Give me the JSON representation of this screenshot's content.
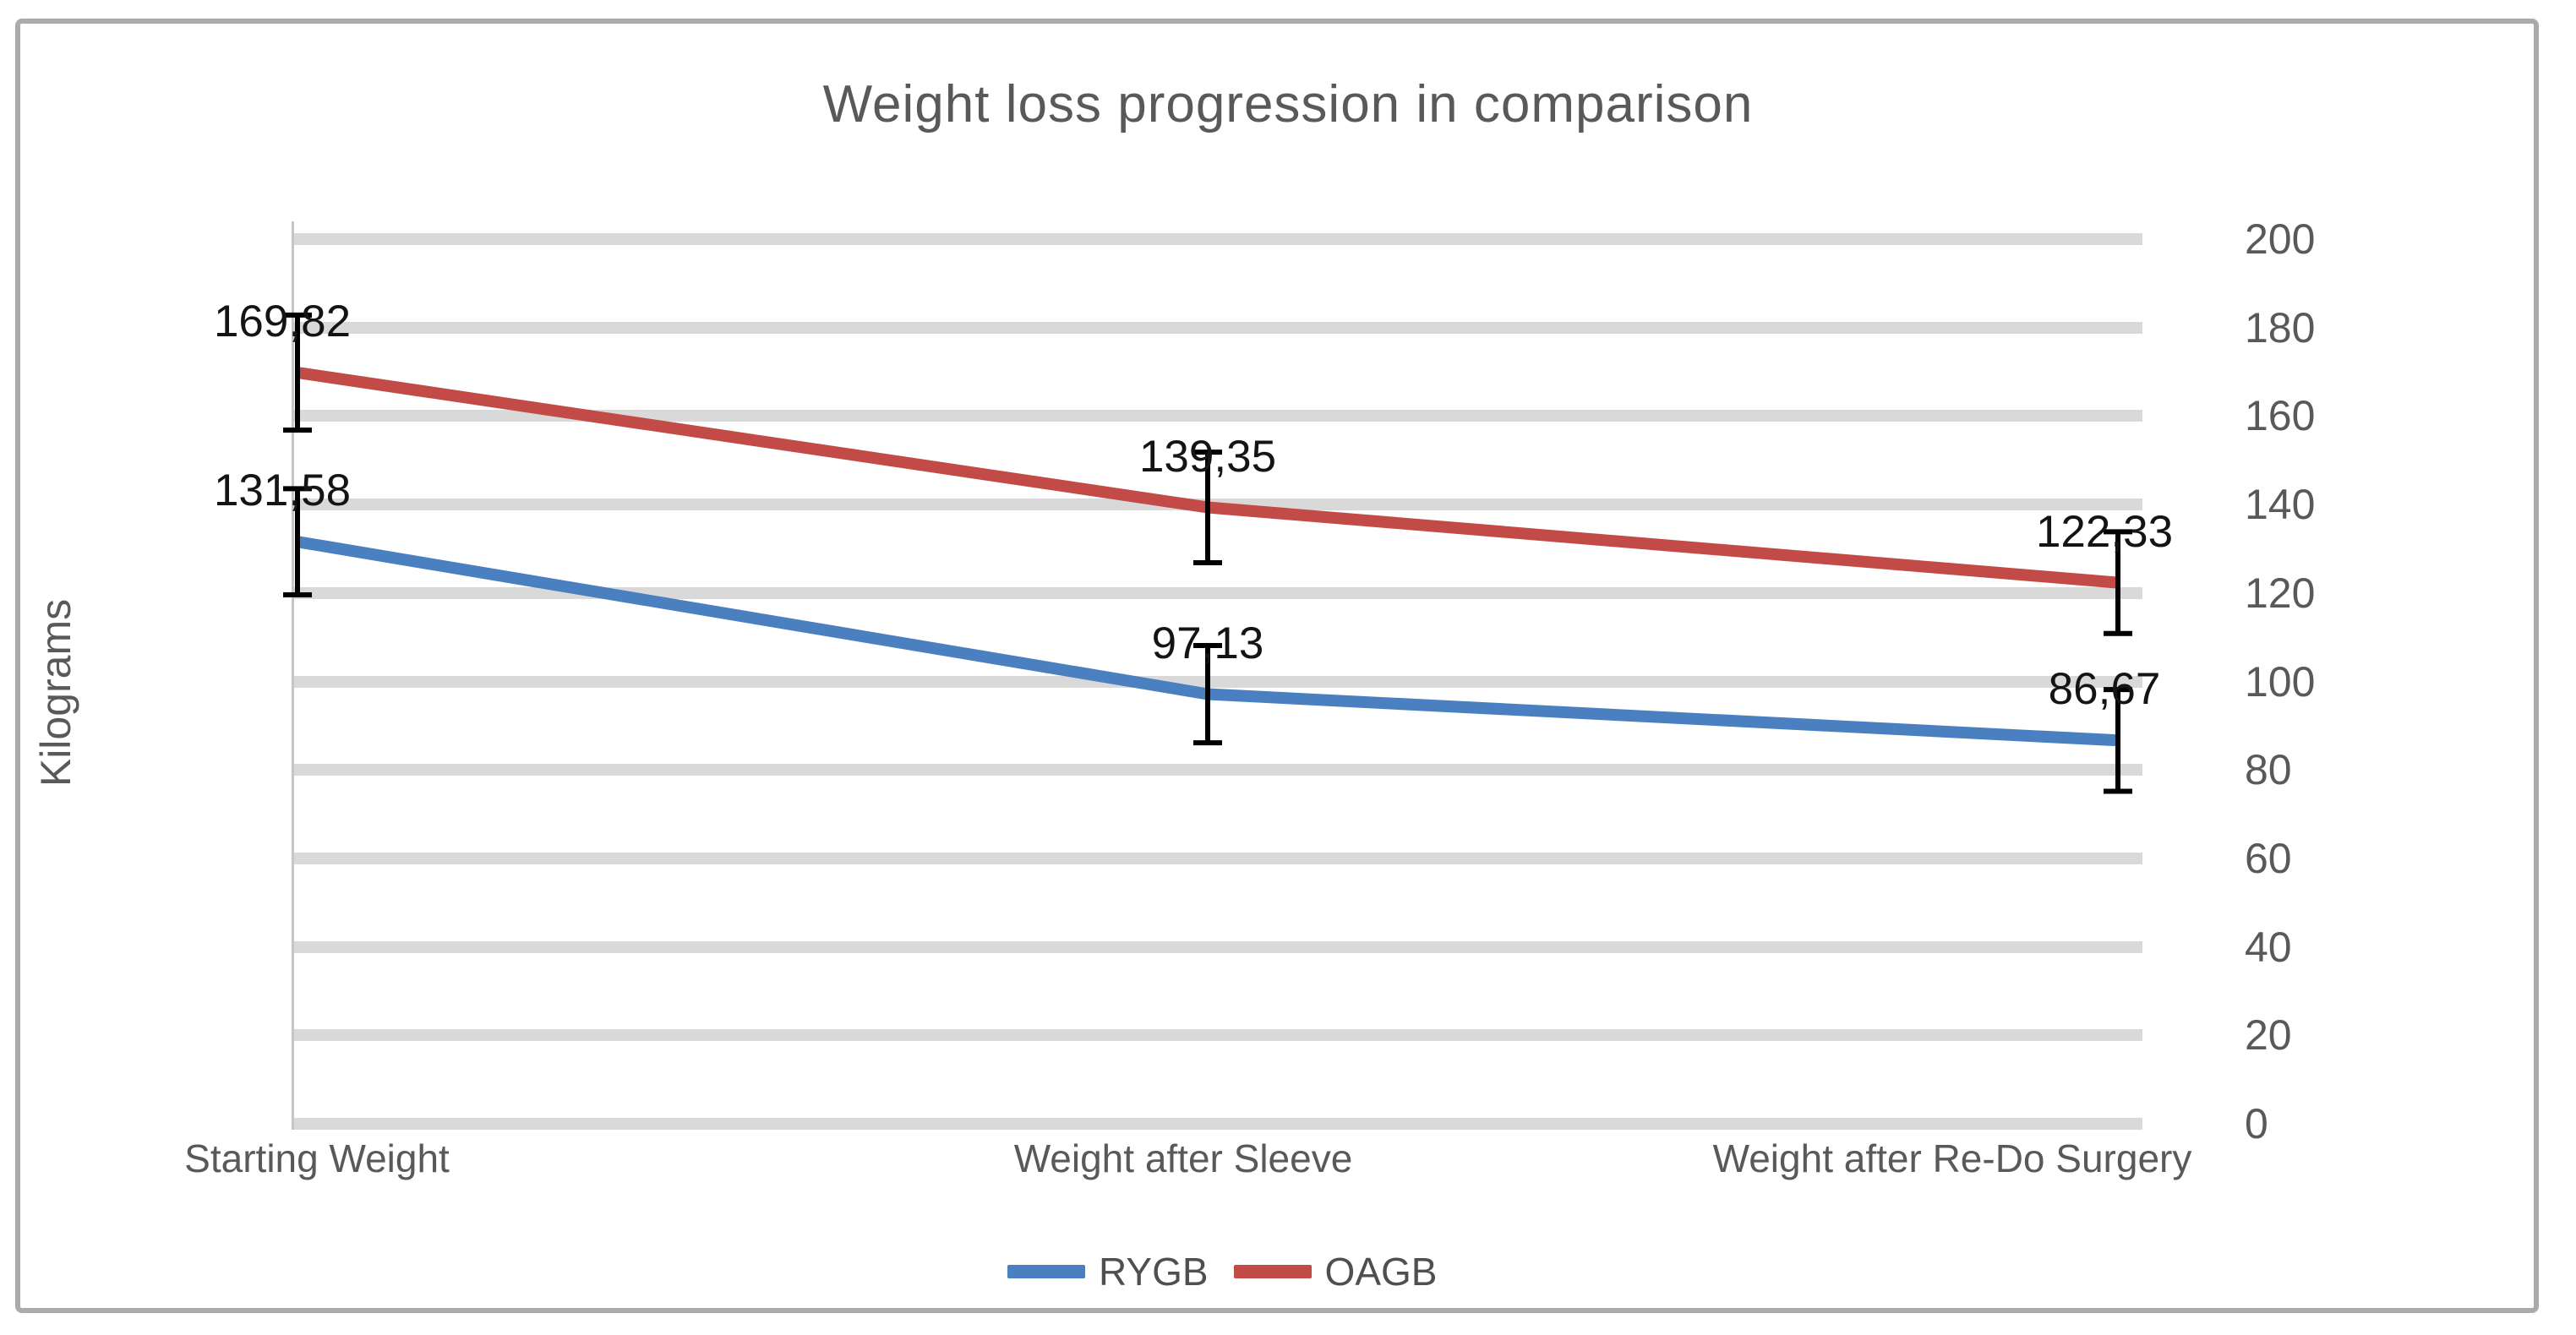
{
  "chart_data": {
    "type": "line",
    "title": "Weight loss progression in comparison",
    "ylabel": "Kilograms",
    "xlabel": "",
    "categories": [
      "Starting Weight",
      "Weight after Sleeve",
      "Weight after Re-Do Surgery"
    ],
    "series": [
      {
        "name": "RYGB",
        "color": "#4a80bf",
        "values": [
          131.58,
          97.13,
          86.67
        ],
        "labels": [
          "131,58",
          "97,13",
          "86,67"
        ],
        "error_bars_kg": [
          12,
          11,
          11.5
        ]
      },
      {
        "name": "OAGB",
        "color": "#c24b47",
        "values": [
          169.82,
          139.35,
          122.33
        ],
        "labels": [
          "169,82",
          "139,35",
          "122,33"
        ],
        "error_bars_kg": [
          13,
          12.5,
          11.5
        ]
      }
    ],
    "yticks": [
      200,
      180,
      160,
      140,
      120,
      100,
      80,
      60,
      40,
      20,
      0
    ],
    "ylim": [
      0,
      200
    ],
    "grid": "horizontal major gridlines every 20",
    "legend_position": "bottom-center",
    "error_bars": true,
    "error_bar_color": "#000000",
    "gridline_color": "#d9d9d9",
    "text_color": "#595959"
  }
}
